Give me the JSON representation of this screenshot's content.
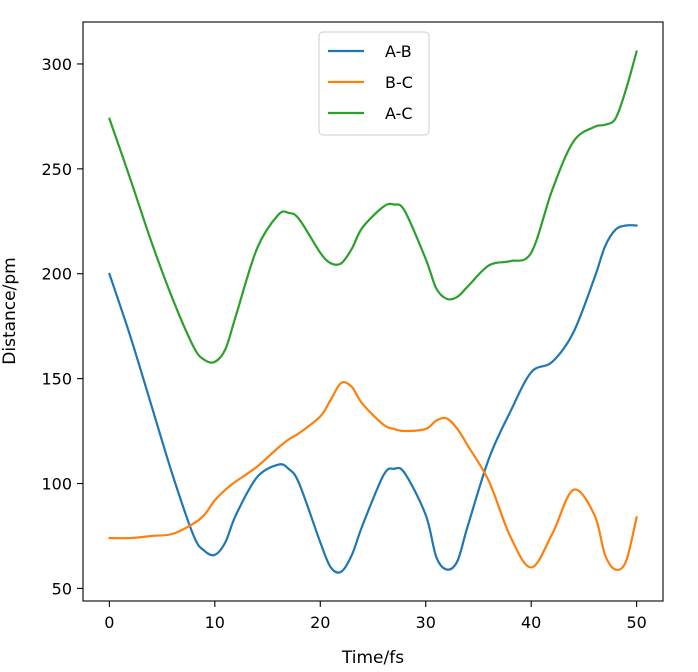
{
  "chart_data": {
    "type": "line",
    "title": "",
    "xlabel": "Time/fs",
    "ylabel": "Distance/pm",
    "xlim": [
      -2.5,
      52.5
    ],
    "ylim": [
      44,
      320
    ],
    "xticks": [
      0,
      10,
      20,
      30,
      40,
      50
    ],
    "yticks": [
      50,
      100,
      150,
      200,
      250,
      300
    ],
    "grid": false,
    "legend": "top-center",
    "x": [
      0,
      2,
      4,
      6,
      8,
      9,
      10,
      11,
      12,
      14,
      16,
      17,
      18,
      20,
      21,
      22,
      23,
      24,
      26,
      27,
      28,
      30,
      31,
      32,
      33,
      34,
      36,
      38,
      40,
      42,
      44,
      46,
      47,
      48,
      49,
      50
    ],
    "series": [
      {
        "name": "A-B",
        "color": "#1f77b4",
        "values": [
          200,
          170,
          137,
          104,
          75,
          68,
          66,
          72,
          85,
          103,
          109,
          107,
          100,
          72,
          60,
          58,
          66,
          80,
          104,
          107,
          105,
          85,
          65,
          59,
          63,
          80,
          112,
          134,
          153,
          158,
          172,
          198,
          213,
          221,
          223,
          223
        ]
      },
      {
        "name": "B-C",
        "color": "#ff7f0e",
        "values": [
          74,
          74,
          75,
          76,
          81,
          85,
          92,
          97,
          101,
          108,
          117,
          121,
          124,
          132,
          140,
          148,
          146,
          138,
          128,
          126,
          125,
          126,
          130,
          131,
          126,
          118,
          101,
          75,
          60,
          76,
          97,
          85,
          66,
          59,
          63,
          84
        ]
      },
      {
        "name": "A-C",
        "color": "#2ca02c",
        "values": [
          274,
          245,
          215,
          188,
          165,
          159,
          158,
          164,
          180,
          212,
          228,
          229,
          226,
          210,
          205,
          205,
          212,
          222,
          232,
          233,
          230,
          207,
          193,
          188,
          189,
          194,
          204,
          206,
          210,
          240,
          263,
          270,
          271,
          274,
          288,
          306
        ]
      }
    ]
  }
}
